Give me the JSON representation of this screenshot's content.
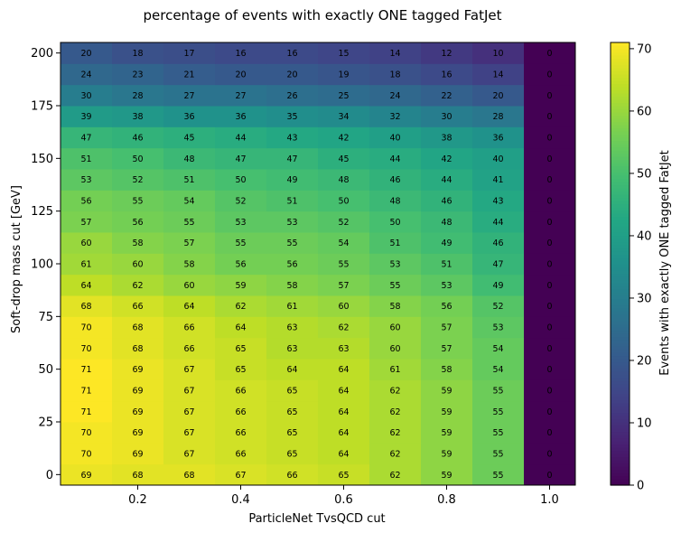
{
  "chart_data": {
    "type": "heatmap",
    "title": "percentage of events with exactly ONE tagged FatJet",
    "xlabel": "ParticleNet TvsQCD cut",
    "ylabel": "Soft-drop mass cut [GeV]",
    "colorbar_label": "Events with exactly ONE tagged FatJet",
    "colormap": "viridis",
    "x": [
      0.1,
      0.2,
      0.3,
      0.4,
      0.5,
      0.6,
      0.7,
      0.8,
      0.9,
      1.0
    ],
    "y": [
      0,
      10,
      20,
      30,
      40,
      50,
      60,
      70,
      80,
      90,
      100,
      110,
      120,
      130,
      140,
      150,
      160,
      170,
      180,
      190,
      200
    ],
    "xlim": [
      0.05,
      1.05
    ],
    "ylim": [
      -5,
      205
    ],
    "clim": [
      0,
      71
    ],
    "x_ticks": [
      0.2,
      0.4,
      0.6,
      0.8,
      1.0
    ],
    "x_tick_labels": [
      "0.2",
      "0.4",
      "0.6",
      "0.8",
      "1.0"
    ],
    "y_ticks": [
      0,
      25,
      50,
      75,
      100,
      125,
      150,
      175,
      200
    ],
    "y_tick_labels": [
      "0",
      "25",
      "50",
      "75",
      "100",
      "125",
      "150",
      "175",
      "200"
    ],
    "colorbar_ticks": [
      0,
      10,
      20,
      30,
      40,
      50,
      60,
      70
    ],
    "colorbar_tick_labels": [
      "0",
      "10",
      "20",
      "30",
      "40",
      "50",
      "60",
      "70"
    ],
    "values": [
      [
        69,
        68,
        68,
        67,
        66,
        65,
        62,
        59,
        55,
        0
      ],
      [
        70,
        69,
        67,
        66,
        65,
        64,
        62,
        59,
        55,
        0
      ],
      [
        70,
        69,
        67,
        66,
        65,
        64,
        62,
        59,
        55,
        0
      ],
      [
        71,
        69,
        67,
        66,
        65,
        64,
        62,
        59,
        55,
        0
      ],
      [
        71,
        69,
        67,
        66,
        65,
        64,
        62,
        59,
        55,
        0
      ],
      [
        71,
        69,
        67,
        65,
        64,
        64,
        61,
        58,
        54,
        0
      ],
      [
        70,
        68,
        66,
        65,
        63,
        63,
        60,
        57,
        54,
        0
      ],
      [
        70,
        68,
        66,
        64,
        63,
        62,
        60,
        57,
        53,
        0
      ],
      [
        68,
        66,
        64,
        62,
        61,
        60,
        58,
        56,
        52,
        0
      ],
      [
        64,
        62,
        60,
        59,
        58,
        57,
        55,
        53,
        49,
        0
      ],
      [
        61,
        60,
        58,
        56,
        56,
        55,
        53,
        51,
        47,
        0
      ],
      [
        60,
        58,
        57,
        55,
        55,
        54,
        51,
        49,
        46,
        0
      ],
      [
        57,
        56,
        55,
        53,
        53,
        52,
        50,
        48,
        44,
        0
      ],
      [
        56,
        55,
        54,
        52,
        51,
        50,
        48,
        46,
        43,
        0
      ],
      [
        53,
        52,
        51,
        50,
        49,
        48,
        46,
        44,
        41,
        0
      ],
      [
        51,
        50,
        48,
        47,
        47,
        45,
        44,
        42,
        40,
        0
      ],
      [
        47,
        46,
        45,
        44,
        43,
        42,
        40,
        38,
        36,
        0
      ],
      [
        39,
        38,
        36,
        36,
        35,
        34,
        32,
        30,
        28,
        0
      ],
      [
        30,
        28,
        27,
        27,
        26,
        25,
        24,
        22,
        20,
        0
      ],
      [
        24,
        23,
        21,
        20,
        20,
        19,
        18,
        16,
        14,
        0
      ],
      [
        20,
        18,
        17,
        16,
        16,
        15,
        14,
        12,
        10,
        0
      ]
    ]
  }
}
